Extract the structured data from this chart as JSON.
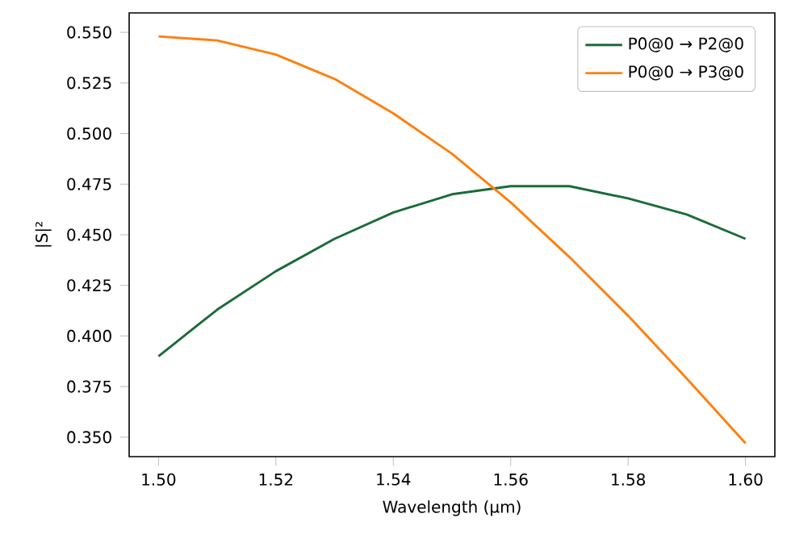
{
  "chart_data": {
    "type": "line",
    "xlabel": "Wavelength (µm)",
    "ylabel": "|S|²",
    "x": [
      1.5,
      1.51,
      1.52,
      1.53,
      1.54,
      1.55,
      1.56,
      1.57,
      1.58,
      1.59,
      1.6
    ],
    "series": [
      {
        "name": "P0@0 → P2@0",
        "color": "#1a6b3a",
        "values": [
          0.39,
          0.413,
          0.432,
          0.448,
          0.461,
          0.47,
          0.474,
          0.474,
          0.468,
          0.46,
          0.448
        ]
      },
      {
        "name": "P0@0 → P3@0",
        "color": "#ff7f0e",
        "values": [
          0.548,
          0.546,
          0.539,
          0.527,
          0.51,
          0.49,
          0.466,
          0.439,
          0.41,
          0.379,
          0.347
        ]
      }
    ],
    "xlim": [
      1.495,
      1.605
    ],
    "ylim": [
      0.3404,
      0.5596
    ],
    "xticks": [
      {
        "value": 1.5,
        "label": "1.50"
      },
      {
        "value": 1.52,
        "label": "1.52"
      },
      {
        "value": 1.54,
        "label": "1.54"
      },
      {
        "value": 1.56,
        "label": "1.56"
      },
      {
        "value": 1.58,
        "label": "1.58"
      },
      {
        "value": 1.6,
        "label": "1.60"
      }
    ],
    "yticks": [
      {
        "value": 0.35,
        "label": "0.350"
      },
      0.375,
      {
        "value": 0.4,
        "label": "0.400"
      },
      0.425,
      {
        "value": 0.45,
        "label": "0.450"
      },
      0.475,
      {
        "value": 0.5,
        "label": "0.500"
      },
      0.525,
      {
        "value": 0.55,
        "label": "0.550"
      }
    ],
    "legend": "top right",
    "marker": "none",
    "line_style": "solid",
    "grid": false
  }
}
